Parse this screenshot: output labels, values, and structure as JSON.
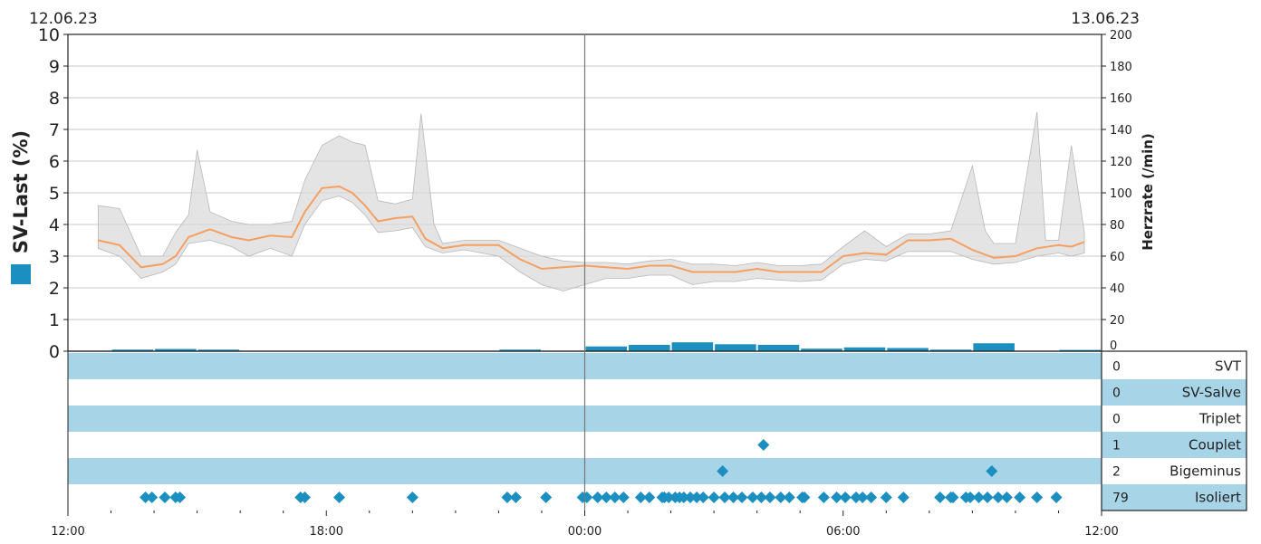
{
  "chart_data": {
    "type": "line",
    "date_left": "12.06.23",
    "date_right": "13.06.23",
    "ylabel_left": "SV-Last (%)",
    "ylabel_right": "Herzrate (/min)",
    "legend_color": "#1a8fc0",
    "colors": {
      "bar": "#1a8fc0",
      "band": "#a8d4e8",
      "hr_line": "#f5a061",
      "hr_range": "#d8d8d8",
      "marker": "#1a8fc0"
    },
    "x_range_hours": [
      12,
      36
    ],
    "x_ticks": [
      {
        "h": 12,
        "label": "12:00"
      },
      {
        "h": 18,
        "label": "18:00"
      },
      {
        "h": 24,
        "label": "00:00"
      },
      {
        "h": 30,
        "label": "06:00"
      },
      {
        "h": 36,
        "label": "12:00"
      }
    ],
    "y_left": {
      "min": 0,
      "max": 10,
      "ticks": [
        "0",
        "1",
        "2",
        "3",
        "4",
        "5",
        "6",
        "7",
        "8",
        "9",
        "10"
      ]
    },
    "y_right": {
      "min": 0,
      "max": 200,
      "ticks": [
        "0",
        "20",
        "40",
        "60",
        "80",
        "100",
        "120",
        "140",
        "160",
        "180",
        "200"
      ]
    },
    "grid": true,
    "sv_load_bars": [
      {
        "h": 13,
        "v": 0.05
      },
      {
        "h": 14,
        "v": 0.07
      },
      {
        "h": 15,
        "v": 0.05
      },
      {
        "h": 22,
        "v": 0.05
      },
      {
        "h": 24,
        "v": 0.15
      },
      {
        "h": 25,
        "v": 0.2
      },
      {
        "h": 26,
        "v": 0.28
      },
      {
        "h": 27,
        "v": 0.22
      },
      {
        "h": 28,
        "v": 0.2
      },
      {
        "h": 29,
        "v": 0.08
      },
      {
        "h": 30,
        "v": 0.12
      },
      {
        "h": 31,
        "v": 0.1
      },
      {
        "h": 32,
        "v": 0.05
      },
      {
        "h": 33,
        "v": 0.25
      },
      {
        "h": 35,
        "v": 0.04
      }
    ],
    "heart_rate": {
      "median": [
        [
          12.7,
          70
        ],
        [
          13.2,
          67
        ],
        [
          13.7,
          53
        ],
        [
          14.2,
          55
        ],
        [
          14.5,
          60
        ],
        [
          14.8,
          72
        ],
        [
          15.3,
          77
        ],
        [
          15.8,
          72
        ],
        [
          16.2,
          70
        ],
        [
          16.7,
          73
        ],
        [
          17.2,
          72
        ],
        [
          17.5,
          88
        ],
        [
          17.9,
          103
        ],
        [
          18.3,
          104
        ],
        [
          18.6,
          100
        ],
        [
          18.9,
          92
        ],
        [
          19.2,
          82
        ],
        [
          19.6,
          84
        ],
        [
          20.0,
          85
        ],
        [
          20.3,
          71
        ],
        [
          20.7,
          65
        ],
        [
          21.2,
          67
        ],
        [
          22.0,
          67
        ],
        [
          22.5,
          58
        ],
        [
          23.0,
          52
        ],
        [
          23.5,
          53
        ],
        [
          24.0,
          54
        ],
        [
          24.5,
          53
        ],
        [
          25.0,
          52
        ],
        [
          25.5,
          54
        ],
        [
          26.0,
          54
        ],
        [
          26.5,
          50
        ],
        [
          27.0,
          50
        ],
        [
          27.5,
          50
        ],
        [
          28.0,
          52
        ],
        [
          28.5,
          50
        ],
        [
          29.0,
          50
        ],
        [
          29.5,
          50
        ],
        [
          30.0,
          60
        ],
        [
          30.5,
          62
        ],
        [
          31.0,
          61
        ],
        [
          31.5,
          70
        ],
        [
          32.0,
          70
        ],
        [
          32.5,
          71
        ],
        [
          33.0,
          64
        ],
        [
          33.5,
          59
        ],
        [
          34.0,
          60
        ],
        [
          34.5,
          65
        ],
        [
          35.0,
          67
        ],
        [
          35.3,
          66
        ],
        [
          35.6,
          69
        ]
      ],
      "upper": [
        [
          12.7,
          92
        ],
        [
          13.2,
          90
        ],
        [
          13.7,
          60
        ],
        [
          14.2,
          60
        ],
        [
          14.5,
          75
        ],
        [
          14.8,
          86
        ],
        [
          15.0,
          127
        ],
        [
          15.3,
          88
        ],
        [
          15.8,
          82
        ],
        [
          16.2,
          80
        ],
        [
          16.7,
          80
        ],
        [
          17.2,
          82
        ],
        [
          17.5,
          108
        ],
        [
          17.9,
          130
        ],
        [
          18.3,
          136
        ],
        [
          18.6,
          132
        ],
        [
          18.9,
          130
        ],
        [
          19.2,
          95
        ],
        [
          19.6,
          93
        ],
        [
          20.0,
          96
        ],
        [
          20.2,
          150
        ],
        [
          20.5,
          80
        ],
        [
          20.7,
          68
        ],
        [
          21.2,
          70
        ],
        [
          22.0,
          70
        ],
        [
          22.5,
          65
        ],
        [
          23.0,
          60
        ],
        [
          23.5,
          57
        ],
        [
          24.0,
          56
        ],
        [
          24.5,
          56
        ],
        [
          25.0,
          55
        ],
        [
          25.5,
          57
        ],
        [
          26.0,
          58
        ],
        [
          26.5,
          55
        ],
        [
          27.0,
          55
        ],
        [
          27.5,
          54
        ],
        [
          28.0,
          56
        ],
        [
          28.5,
          54
        ],
        [
          29.0,
          54
        ],
        [
          29.5,
          55
        ],
        [
          30.0,
          66
        ],
        [
          30.5,
          76
        ],
        [
          31.0,
          66
        ],
        [
          31.5,
          74
        ],
        [
          32.0,
          74
        ],
        [
          32.5,
          76
        ],
        [
          33.0,
          117
        ],
        [
          33.3,
          76
        ],
        [
          33.5,
          68
        ],
        [
          34.0,
          68
        ],
        [
          34.5,
          151
        ],
        [
          34.7,
          70
        ],
        [
          35.0,
          70
        ],
        [
          35.3,
          130
        ],
        [
          35.6,
          75
        ]
      ],
      "lower": [
        [
          12.7,
          65
        ],
        [
          13.2,
          60
        ],
        [
          13.7,
          46
        ],
        [
          14.2,
          50
        ],
        [
          14.5,
          55
        ],
        [
          14.8,
          68
        ],
        [
          15.3,
          70
        ],
        [
          15.8,
          66
        ],
        [
          16.2,
          60
        ],
        [
          16.7,
          65
        ],
        [
          17.2,
          60
        ],
        [
          17.5,
          80
        ],
        [
          17.9,
          95
        ],
        [
          18.3,
          98
        ],
        [
          18.6,
          94
        ],
        [
          18.9,
          86
        ],
        [
          19.2,
          75
        ],
        [
          19.6,
          76
        ],
        [
          20.0,
          78
        ],
        [
          20.3,
          66
        ],
        [
          20.7,
          62
        ],
        [
          21.2,
          64
        ],
        [
          22.0,
          60
        ],
        [
          22.5,
          50
        ],
        [
          23.0,
          42
        ],
        [
          23.5,
          38
        ],
        [
          24.0,
          42
        ],
        [
          24.5,
          46
        ],
        [
          25.0,
          46
        ],
        [
          25.5,
          48
        ],
        [
          26.0,
          48
        ],
        [
          26.5,
          42
        ],
        [
          27.0,
          44
        ],
        [
          27.5,
          44
        ],
        [
          28.0,
          46
        ],
        [
          28.5,
          45
        ],
        [
          29.0,
          44
        ],
        [
          29.5,
          45
        ],
        [
          30.0,
          55
        ],
        [
          30.5,
          58
        ],
        [
          31.0,
          57
        ],
        [
          31.5,
          63
        ],
        [
          32.0,
          63
        ],
        [
          32.5,
          63
        ],
        [
          33.0,
          58
        ],
        [
          33.5,
          55
        ],
        [
          34.0,
          56
        ],
        [
          34.5,
          60
        ],
        [
          35.0,
          62
        ],
        [
          35.3,
          60
        ],
        [
          35.6,
          62
        ]
      ]
    },
    "event_rows": [
      {
        "label": "SVT",
        "count": "0",
        "shaded": true,
        "events": []
      },
      {
        "label": "SV-Salve",
        "count": "0",
        "shaded": false,
        "events": []
      },
      {
        "label": "Triplet",
        "count": "0",
        "shaded": true,
        "events": []
      },
      {
        "label": "Couplet",
        "count": "1",
        "shaded": false,
        "events": [
          28.15
        ]
      },
      {
        "label": "Bigeminus",
        "count": "2",
        "shaded": true,
        "events": [
          27.2,
          33.45
        ]
      },
      {
        "label": "Isoliert",
        "count": "79",
        "shaded": false,
        "events": [
          13.8,
          13.95,
          14.25,
          14.5,
          14.6,
          17.4,
          17.5,
          18.3,
          20.0,
          22.2,
          22.4,
          23.1,
          23.95,
          24.05,
          24.3,
          24.5,
          24.7,
          24.9,
          25.3,
          25.5,
          25.8,
          25.85,
          25.95,
          26.1,
          26.2,
          26.3,
          26.45,
          26.6,
          26.75,
          27.0,
          27.25,
          27.45,
          27.65,
          27.9,
          28.1,
          28.3,
          28.55,
          28.75,
          29.05,
          29.1,
          29.55,
          29.85,
          30.05,
          30.3,
          30.45,
          30.65,
          31.0,
          31.4,
          32.25,
          32.5,
          32.55,
          32.85,
          32.95,
          33.15,
          33.35,
          33.6,
          33.8,
          34.1,
          34.5,
          34.95
        ]
      }
    ]
  }
}
